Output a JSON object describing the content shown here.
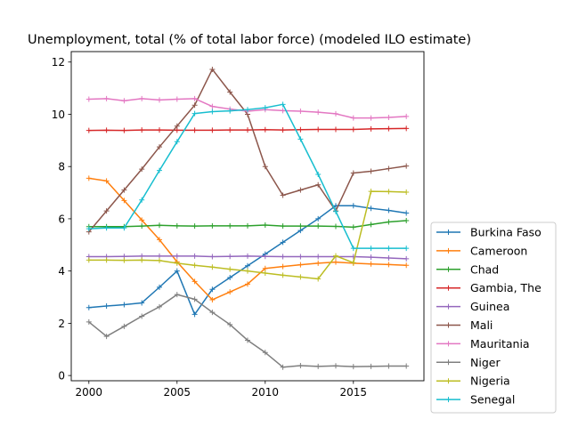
{
  "chart_data": {
    "type": "line",
    "title": "Unemployment, total (% of total labor force) (modeled ILO estimate)",
    "xlabel": "",
    "ylabel": "",
    "xlim": [
      1999,
      2019
    ],
    "ylim": [
      -0.2,
      12.4
    ],
    "xticks": [
      2000,
      2005,
      2010,
      2015
    ],
    "yticks": [
      0,
      2,
      4,
      6,
      8,
      10,
      12
    ],
    "grid": false,
    "legend": "outside-bottom-right",
    "x": [
      2000,
      2001,
      2002,
      2003,
      2004,
      2005,
      2006,
      2007,
      2008,
      2009,
      2010,
      2011,
      2012,
      2013,
      2014,
      2015,
      2016,
      2017,
      2018
    ],
    "series": [
      {
        "name": "Burkina Faso",
        "color": "#1f77b4",
        "values": [
          2.6,
          2.66,
          2.71,
          2.78,
          3.38,
          4.0,
          2.34,
          3.3,
          3.75,
          4.2,
          4.65,
          5.1,
          5.55,
          6.0,
          6.5,
          6.5,
          6.4,
          6.32,
          6.22
        ]
      },
      {
        "name": "Cameroon",
        "color": "#ff7f0e",
        "values": [
          7.55,
          7.45,
          6.7,
          5.95,
          5.2,
          4.35,
          3.6,
          2.9,
          3.2,
          3.5,
          4.1,
          4.17,
          4.24,
          4.3,
          4.34,
          4.3,
          4.27,
          4.25,
          4.22
        ]
      },
      {
        "name": "Chad",
        "color": "#2ca02c",
        "values": [
          5.7,
          5.7,
          5.7,
          5.72,
          5.75,
          5.73,
          5.72,
          5.73,
          5.73,
          5.73,
          5.76,
          5.72,
          5.72,
          5.72,
          5.71,
          5.68,
          5.78,
          5.88,
          5.93
        ]
      },
      {
        "name": "Gambia, The",
        "color": "#d62728",
        "values": [
          9.38,
          9.39,
          9.38,
          9.4,
          9.4,
          9.39,
          9.39,
          9.39,
          9.4,
          9.4,
          9.41,
          9.4,
          9.41,
          9.42,
          9.42,
          9.42,
          9.44,
          9.45,
          9.46
        ]
      },
      {
        "name": "Guinea",
        "color": "#9467bd",
        "values": [
          4.55,
          4.55,
          4.56,
          4.57,
          4.57,
          4.57,
          4.57,
          4.55,
          4.56,
          4.57,
          4.56,
          4.55,
          4.55,
          4.55,
          4.55,
          4.55,
          4.53,
          4.5,
          4.47
        ]
      },
      {
        "name": "Mali",
        "color": "#8c564b",
        "values": [
          5.5,
          6.3,
          7.1,
          7.9,
          8.75,
          9.55,
          10.35,
          11.72,
          10.85,
          10.0,
          8.0,
          6.9,
          7.1,
          7.3,
          6.3,
          7.75,
          7.82,
          7.92,
          8.02
        ]
      },
      {
        "name": "Mauritania",
        "color": "#e377c2",
        "values": [
          10.58,
          10.6,
          10.52,
          10.6,
          10.55,
          10.58,
          10.6,
          10.3,
          10.2,
          10.12,
          10.18,
          10.14,
          10.12,
          10.08,
          10.02,
          9.86,
          9.86,
          9.88,
          9.92
        ]
      },
      {
        "name": "Niger",
        "color": "#7f7f7f",
        "values": [
          2.05,
          1.5,
          1.88,
          2.27,
          2.63,
          3.1,
          2.92,
          2.42,
          1.95,
          1.35,
          0.88,
          0.32,
          0.38,
          0.35,
          0.37,
          0.34,
          0.35,
          0.36,
          0.36
        ]
      },
      {
        "name": "Nigeria",
        "color": "#bcbd22",
        "values": [
          4.42,
          4.42,
          4.41,
          4.42,
          4.4,
          4.3,
          4.22,
          4.15,
          4.07,
          4.0,
          3.92,
          3.84,
          3.77,
          3.7,
          4.58,
          4.32,
          7.05,
          7.04,
          7.02
        ]
      },
      {
        "name": "Senegal",
        "color": "#17becf",
        "values": [
          5.62,
          5.65,
          5.65,
          6.72,
          7.85,
          8.95,
          10.03,
          10.1,
          10.13,
          10.18,
          10.25,
          10.38,
          9.05,
          7.7,
          6.28,
          4.87,
          4.87,
          4.87,
          4.87
        ]
      }
    ]
  }
}
